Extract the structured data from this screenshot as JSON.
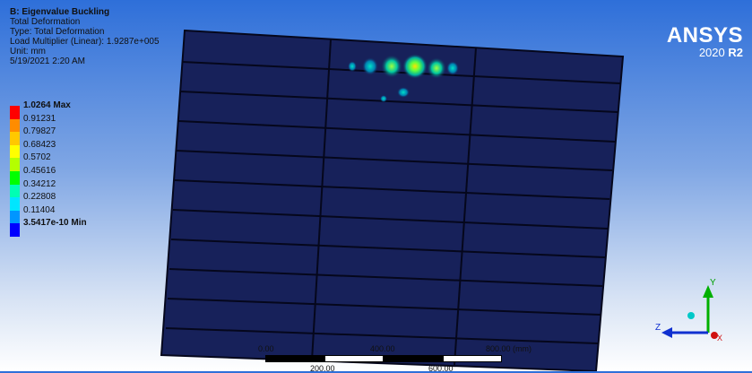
{
  "info": {
    "title": "B: Eigenvalue Buckling",
    "line1": "Total Deformation",
    "line2": "Type: Total Deformation",
    "line3": "Load Multiplier (Linear): 1.9287e+005",
    "line4": "Unit: mm",
    "line5": "5/19/2021 2:20 AM"
  },
  "legend": [
    {
      "label": "1.0264 Max",
      "color": "#ff0000",
      "bold": true
    },
    {
      "label": "0.91231",
      "color": "#ff8c00",
      "bold": false
    },
    {
      "label": "0.79827",
      "color": "#ffc800",
      "bold": false
    },
    {
      "label": "0.68423",
      "color": "#ffff00",
      "bold": false
    },
    {
      "label": "0.5702",
      "color": "#b4ff00",
      "bold": false
    },
    {
      "label": "0.45616",
      "color": "#00ff00",
      "bold": false
    },
    {
      "label": "0.34212",
      "color": "#00ffb4",
      "bold": false
    },
    {
      "label": "0.22808",
      "color": "#00e6ff",
      "bold": false
    },
    {
      "label": "0.11404",
      "color": "#0096ff",
      "bold": false
    },
    {
      "label": "3.5417e-10 Min",
      "color": "#0000ff",
      "bold": true
    }
  ],
  "brand": {
    "name": "ANSYS",
    "version": "2020",
    "release": "R2"
  },
  "scale": {
    "top_labels": [
      "0.00",
      "400.00",
      "800.00 (mm)"
    ],
    "bottom_labels": [
      "200.00",
      "600.00"
    ]
  },
  "triad": {
    "y": "Y",
    "z": "Z",
    "x": "X"
  },
  "colors": {
    "model_fill": "#17215a",
    "grid_line": "#05071c"
  }
}
